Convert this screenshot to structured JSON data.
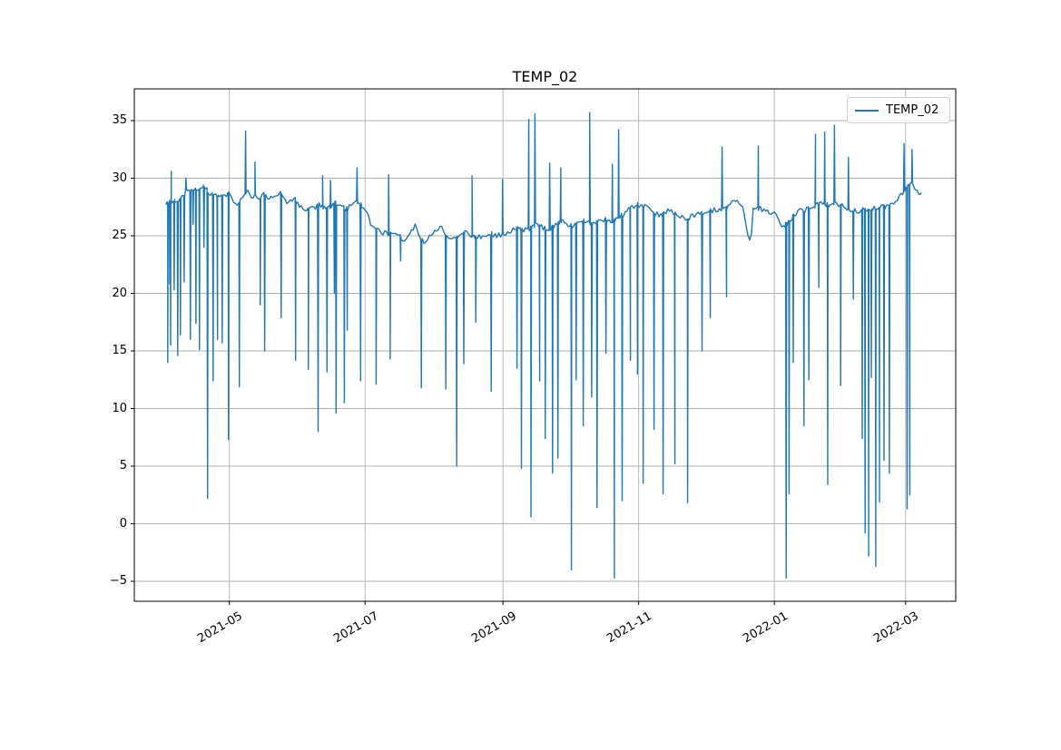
{
  "title": "TEMP_02",
  "legend": {
    "label": "TEMP_02",
    "color": "#1f77b4"
  },
  "axes": {
    "grid_color": "#b0b0b0",
    "spine_color": "#000000",
    "y_ticks": [
      {
        "label": "35",
        "value": 35
      },
      {
        "label": "30",
        "value": 30
      },
      {
        "label": "25",
        "value": 25
      },
      {
        "label": "20",
        "value": 20
      },
      {
        "label": "15",
        "value": 15
      },
      {
        "label": "10",
        "value": 10
      },
      {
        "label": "5",
        "value": 5
      },
      {
        "label": "0",
        "value": 0
      },
      {
        "label": "−5",
        "value": -5
      }
    ],
    "x_ticks": [
      {
        "label": "2021-05",
        "day": 29
      },
      {
        "label": "2021-07",
        "day": 90
      },
      {
        "label": "2021-09",
        "day": 152
      },
      {
        "label": "2021-11",
        "day": 213
      },
      {
        "label": "2022-01",
        "day": 274
      },
      {
        "label": "2022-03",
        "day": 333
      }
    ]
  },
  "chart_data": {
    "type": "line",
    "title": "TEMP_02",
    "xlabel": "",
    "ylabel": "",
    "ylim": [
      -6.7,
      37.8
    ],
    "x_day0_date": "2021-04-02",
    "x_domain_days": [
      0.5,
      340
    ],
    "grid": true,
    "legend_position": "upper right",
    "series": [
      {
        "name": "TEMP_02",
        "color": "#1f77b4",
        "baseline": [
          [
            0.5,
            27.8
          ],
          [
            2,
            27.9
          ],
          [
            4,
            28.0
          ],
          [
            6,
            28.1
          ],
          [
            8,
            28.3
          ],
          [
            10,
            29.0
          ],
          [
            12,
            29.1
          ],
          [
            14,
            28.9
          ],
          [
            16,
            29.0
          ],
          [
            18,
            29.3
          ],
          [
            20,
            28.7
          ],
          [
            22,
            28.5
          ],
          [
            24,
            28.4
          ],
          [
            27,
            28.6
          ],
          [
            29,
            28.6
          ],
          [
            31,
            28.0
          ],
          [
            33,
            27.7
          ],
          [
            35,
            28.3
          ],
          [
            37,
            28.9
          ],
          [
            39,
            28.4
          ],
          [
            42,
            28.3
          ],
          [
            45,
            28.6
          ],
          [
            48,
            28.2
          ],
          [
            52,
            28.8
          ],
          [
            55,
            27.9
          ],
          [
            58,
            28.3
          ],
          [
            60,
            27.6
          ],
          [
            63,
            27.2
          ],
          [
            66,
            27.4
          ],
          [
            70,
            27.7
          ],
          [
            73,
            27.3
          ],
          [
            76,
            27.9
          ],
          [
            79,
            27.5
          ],
          [
            82,
            27.3
          ],
          [
            86,
            28.1
          ],
          [
            88,
            27.7
          ],
          [
            90,
            27.4
          ],
          [
            91,
            26.8
          ],
          [
            93,
            25.9
          ],
          [
            95,
            25.5
          ],
          [
            98,
            25.3
          ],
          [
            101,
            25.2
          ],
          [
            104,
            25.4
          ],
          [
            106,
            24.9
          ],
          [
            108,
            24.6
          ],
          [
            111,
            25.6
          ],
          [
            113,
            25.9
          ],
          [
            115,
            24.7
          ],
          [
            117,
            24.5
          ],
          [
            119,
            25.1
          ],
          [
            122,
            25.6
          ],
          [
            124,
            25.8
          ],
          [
            126,
            25.2
          ],
          [
            128,
            24.7
          ],
          [
            131,
            24.8
          ],
          [
            134,
            25.3
          ],
          [
            137,
            25.1
          ],
          [
            140,
            24.9
          ],
          [
            143,
            25.0
          ],
          [
            146,
            25.2
          ],
          [
            149,
            25.0
          ],
          [
            152,
            25.1
          ],
          [
            155,
            25.4
          ],
          [
            158,
            25.7
          ],
          [
            161,
            25.4
          ],
          [
            164,
            25.6
          ],
          [
            167,
            26.0
          ],
          [
            170,
            25.7
          ],
          [
            172,
            25.5
          ],
          [
            175,
            25.8
          ],
          [
            178,
            26.3
          ],
          [
            180,
            26.0
          ],
          [
            183,
            25.8
          ],
          [
            186,
            26.1
          ],
          [
            189,
            26.3
          ],
          [
            192,
            26.0
          ],
          [
            195,
            26.2
          ],
          [
            198,
            26.5
          ],
          [
            201,
            26.3
          ],
          [
            204,
            26.6
          ],
          [
            207,
            27.0
          ],
          [
            210,
            27.5
          ],
          [
            212,
            27.7
          ],
          [
            214,
            27.7
          ],
          [
            217,
            27.4
          ],
          [
            220,
            27.0
          ],
          [
            223,
            26.8
          ],
          [
            226,
            27.2
          ],
          [
            229,
            27.0
          ],
          [
            232,
            26.7
          ],
          [
            235,
            26.5
          ],
          [
            238,
            26.8
          ],
          [
            241,
            27.1
          ],
          [
            244,
            27.0
          ],
          [
            247,
            27.3
          ],
          [
            250,
            27.1
          ],
          [
            253,
            27.6
          ],
          [
            256,
            28.0
          ],
          [
            258,
            27.8
          ],
          [
            259.5,
            27.8
          ],
          [
            263.5,
            23.9
          ],
          [
            264,
            27.2
          ],
          [
            266,
            27.4
          ],
          [
            268,
            27.4
          ],
          [
            270,
            27.1
          ],
          [
            272,
            27.0
          ],
          [
            274,
            26.9
          ],
          [
            276,
            26.5
          ],
          [
            278,
            25.7
          ],
          [
            281.5,
            26.5
          ],
          [
            284,
            27.0
          ],
          [
            286,
            27.3
          ],
          [
            288,
            27.2
          ],
          [
            291,
            27.5
          ],
          [
            295,
            27.8
          ],
          [
            299,
            27.6
          ],
          [
            302,
            27.8
          ],
          [
            305,
            27.5
          ],
          [
            308,
            27.3
          ],
          [
            311,
            27.1
          ],
          [
            313,
            27.3
          ],
          [
            316,
            27.2
          ],
          [
            318,
            27.3
          ],
          [
            320,
            27.4
          ],
          [
            322,
            27.6
          ],
          [
            324,
            27.5
          ],
          [
            326,
            27.7
          ],
          [
            328,
            28.0
          ],
          [
            330,
            28.3
          ],
          [
            332,
            28.7
          ],
          [
            334,
            29.3
          ],
          [
            336,
            29.5
          ],
          [
            338,
            28.9
          ],
          [
            340,
            28.6
          ]
        ],
        "spikes": [
          [
            1.3,
            14.0
          ],
          [
            2.2,
            20.8
          ],
          [
            2.6,
            15.5
          ],
          [
            2.9,
            30.6
          ],
          [
            4.2,
            20.3
          ],
          [
            5.8,
            14.6
          ],
          [
            7.0,
            16.4
          ],
          [
            8.7,
            21.0
          ],
          [
            9.5,
            30.0
          ],
          [
            11.5,
            16.0
          ],
          [
            12.7,
            26.0
          ],
          [
            14.0,
            17.4
          ],
          [
            15.6,
            15.1
          ],
          [
            17.6,
            24.0
          ],
          [
            19.2,
            2.2
          ],
          [
            21.7,
            12.4
          ],
          [
            23.7,
            16.0
          ],
          [
            25.8,
            15.7
          ],
          [
            28.6,
            7.3
          ],
          [
            33.5,
            11.9
          ],
          [
            36.3,
            34.1
          ],
          [
            40.5,
            31.4
          ],
          [
            42.9,
            19.0
          ],
          [
            44.9,
            15.0
          ],
          [
            52.3,
            17.9
          ],
          [
            58.8,
            14.2
          ],
          [
            64.5,
            13.4
          ],
          [
            68.9,
            8.0
          ],
          [
            70.9,
            30.2
          ],
          [
            72.9,
            13.2
          ],
          [
            74.5,
            29.8
          ],
          [
            76.2,
            20.0
          ],
          [
            77.0,
            9.6
          ],
          [
            80.7,
            10.5
          ],
          [
            82.0,
            16.8
          ],
          [
            86.4,
            30.9
          ],
          [
            88.0,
            12.4
          ],
          [
            95.0,
            12.1
          ],
          [
            100.6,
            30.3
          ],
          [
            101.3,
            14.3
          ],
          [
            106.0,
            22.8
          ],
          [
            115.3,
            11.8
          ],
          [
            126.3,
            11.7
          ],
          [
            131.2,
            5.0
          ],
          [
            134.4,
            13.9
          ],
          [
            138.1,
            30.2
          ],
          [
            139.8,
            17.5
          ],
          [
            146.7,
            11.5
          ],
          [
            151.8,
            29.9
          ],
          [
            158.3,
            13.5
          ],
          [
            160.3,
            4.8
          ],
          [
            163.6,
            35.1
          ],
          [
            164.6,
            0.6
          ],
          [
            166.4,
            35.6
          ],
          [
            168.5,
            12.4
          ],
          [
            171.0,
            7.4
          ],
          [
            173.0,
            31.3
          ],
          [
            174.3,
            4.4
          ],
          [
            176.7,
            5.7
          ],
          [
            178.0,
            30.9
          ],
          [
            182.8,
            -4.0
          ],
          [
            184.9,
            12.5
          ],
          [
            188.1,
            8.5
          ],
          [
            191.0,
            35.7
          ],
          [
            191.9,
            11.0
          ],
          [
            194.3,
            1.4
          ],
          [
            198.3,
            14.8
          ],
          [
            201.2,
            31.2
          ],
          [
            202.1,
            -4.7
          ],
          [
            204.0,
            34.2
          ],
          [
            205.6,
            2.0
          ],
          [
            209.3,
            14.2
          ],
          [
            212.5,
            13.0
          ],
          [
            215.0,
            3.5
          ],
          [
            219.9,
            8.2
          ],
          [
            224.0,
            2.6
          ],
          [
            229.3,
            5.2
          ],
          [
            235.0,
            1.8
          ],
          [
            241.5,
            15.0
          ],
          [
            245.2,
            17.9
          ],
          [
            250.5,
            32.7
          ],
          [
            252.5,
            19.7
          ],
          [
            266.8,
            32.8
          ],
          [
            279.3,
            -4.7
          ],
          [
            280.6,
            2.6
          ],
          [
            282.5,
            14.0
          ],
          [
            287.3,
            8.5
          ],
          [
            289.5,
            12.5
          ],
          [
            292.5,
            33.8
          ],
          [
            294.0,
            20.5
          ],
          [
            296.6,
            34.0
          ],
          [
            298.0,
            3.4
          ],
          [
            301.0,
            34.6
          ],
          [
            303.8,
            12.0
          ],
          [
            307.3,
            31.8
          ],
          [
            309.5,
            19.5
          ],
          [
            313.5,
            7.4
          ],
          [
            314.8,
            -0.8
          ],
          [
            316.4,
            -2.8
          ],
          [
            317.6,
            12.7
          ],
          [
            319.6,
            -3.7
          ],
          [
            321.3,
            1.9
          ],
          [
            323.3,
            5.5
          ],
          [
            325.7,
            4.4
          ],
          [
            332.3,
            33.0
          ],
          [
            333.7,
            1.3
          ],
          [
            334.9,
            2.5
          ],
          [
            335.9,
            32.5
          ]
        ]
      }
    ]
  }
}
